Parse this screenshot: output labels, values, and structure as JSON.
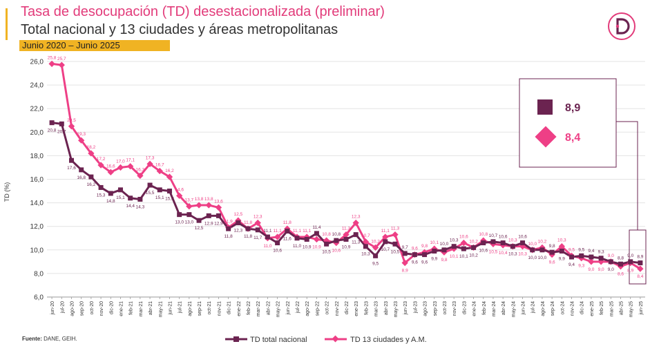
{
  "header": {
    "title": "Tasa de desocupación (TD) desestacionalizada (preliminar)",
    "subtitle": "Total nacional y 13 ciudades y áreas metropolitanas",
    "period": "Junio 2020 – Junio 2025"
  },
  "footer": {
    "source_label": "Fuente:",
    "source_text": "DANE, GEIH."
  },
  "legend_box": {
    "national_value": "8,9",
    "cities_value": "8,4"
  },
  "colors": {
    "national": "#6b2350",
    "cities": "#ee3f86",
    "accent": "#f0b323",
    "title": "#e23b7a"
  },
  "chart_data": {
    "type": "line",
    "ylabel": "TD (%)",
    "ylim": [
      6,
      26
    ],
    "yticks": [
      "6,0",
      "8,0",
      "10,0",
      "12,0",
      "14,0",
      "16,0",
      "18,0",
      "20,0",
      "22,0",
      "24,0",
      "26,0"
    ],
    "categories": [
      "jun-20",
      "jul-20",
      "ago-20",
      "sep-20",
      "oct-20",
      "nov-20",
      "dic-20",
      "ene-21",
      "feb-21",
      "mar-21",
      "abr-21",
      "may-21",
      "jun-21",
      "jul-21",
      "ago-21",
      "sep-21",
      "oct-21",
      "nov-21",
      "dic-21",
      "ene-22",
      "feb-22",
      "mar-22",
      "abr-22",
      "may-22",
      "jun-22",
      "jul-22",
      "ago-22",
      "sep-22",
      "oct-22",
      "nov-22",
      "dic-22",
      "ene-23",
      "feb-23",
      "mar-23",
      "abr-23",
      "may-23",
      "jun-23",
      "jul-23",
      "ago-23",
      "sep-23",
      "oct-23",
      "nov-23",
      "dic-23",
      "ene-24",
      "feb-24",
      "mar-24",
      "abr-24",
      "may-24",
      "jun-24",
      "jul-24",
      "ago-24",
      "sep-24",
      "oct-24",
      "nov-24",
      "dic-24",
      "ene-25",
      "feb-25",
      "mar-25",
      "abr-25",
      "may-25",
      "jun-25"
    ],
    "series": [
      {
        "name": "TD total nacional",
        "values": [
          20.8,
          20.7,
          17.6,
          16.8,
          16.2,
          15.3,
          14.8,
          15.1,
          14.4,
          14.3,
          15.5,
          15.1,
          15.0,
          13.0,
          13.0,
          12.5,
          12.9,
          12.9,
          11.8,
          12.3,
          11.8,
          11.7,
          11.1,
          10.6,
          11.6,
          11.0,
          10.9,
          11.4,
          10.5,
          10.8,
          10.9,
          11.3,
          10.3,
          9.5,
          10.7,
          10.5,
          9.7,
          9.6,
          9.6,
          9.9,
          10.0,
          10.3,
          10.1,
          10.2,
          10.6,
          10.7,
          10.6,
          10.3,
          10.6,
          10.0,
          10.0,
          9.8,
          9.9,
          9.4,
          9.5,
          9.4,
          9.3,
          9.0,
          8.8,
          9.0,
          8.9
        ],
        "labels": [
          "20,8",
          "20,7",
          "17,6",
          "16,8",
          "16,2",
          "15,3",
          "14,8",
          "15,1",
          "14,4",
          "14,3",
          "15,5",
          "15,1",
          "15,0",
          "13,0",
          "13,0",
          "12,5",
          "12,9",
          "12,9",
          "11,8",
          "12,3",
          "11,8",
          "11,7",
          "11,1",
          "10,6",
          "11,6",
          "11,0",
          "10,9",
          "11,4",
          "10,5",
          "10,8",
          "10,9",
          "11,3",
          "10,3",
          "9,5",
          "10,7",
          "10,5",
          "9,7",
          "9,6",
          "9,6",
          "9,9",
          "10,0",
          "10,3",
          "10,1",
          "10,2",
          "10,6",
          "10,7",
          "10,6",
          "10,3",
          "10,6",
          "10,0",
          "10,0",
          "9,8",
          "9,9",
          "9,4",
          "9,5",
          "9,4",
          "9,3",
          "9,0",
          "8,8",
          "9,0",
          "8,9"
        ]
      },
      {
        "name": "TD 13 ciudades y A.M.",
        "values": [
          25.8,
          25.7,
          20.5,
          19.3,
          18.2,
          17.2,
          16.6,
          17.0,
          17.1,
          16.3,
          17.3,
          16.7,
          16.2,
          14.6,
          13.7,
          13.8,
          13.8,
          13.6,
          11.9,
          12.5,
          11.8,
          12.3,
          11.0,
          11.1,
          11.8,
          11.1,
          11.1,
          10.9,
          10.8,
          10.6,
          11.3,
          12.3,
          10.7,
          10.2,
          11.1,
          11.3,
          8.9,
          9.6,
          9.8,
          10.1,
          9.8,
          10.1,
          10.6,
          10.2,
          10.8,
          10.5,
          10.4,
          10.3,
          10.3,
          10.0,
          10.2,
          9.6,
          10.3,
          9.5,
          9.3,
          9.0,
          9.0,
          9.0,
          8.6,
          8.9,
          8.4
        ],
        "labels": [
          "25,8",
          "25,7",
          "20,5",
          "19,3",
          "18,2",
          "17,2",
          "16,6",
          "17,0",
          "17,1",
          "16,3",
          "17,3",
          "16,7",
          "16,2",
          "14,6",
          "13,7",
          "13,8",
          "13,8",
          "13,6",
          "11,9",
          "12,5",
          "11,8",
          "12,3",
          "11,0",
          "11,1",
          "11,8",
          "11,1",
          "11,1",
          "10,9",
          "10,8",
          "10,6",
          "11,3",
          "12,3",
          "10,7",
          "10,2",
          "11,1",
          "11,3",
          "8,9",
          "9,6",
          "9,8",
          "10,1",
          "9,8",
          "10,1",
          "10,6",
          "10,2",
          "10,8",
          "10,5",
          "10,4",
          "10,3",
          "10,3",
          "10,0",
          "10,2",
          "9,6",
          "10,3",
          "9,5",
          "9,3",
          "9,0",
          "9,0",
          "9,0",
          "8,6",
          "8,9",
          "8,4"
        ]
      }
    ]
  }
}
